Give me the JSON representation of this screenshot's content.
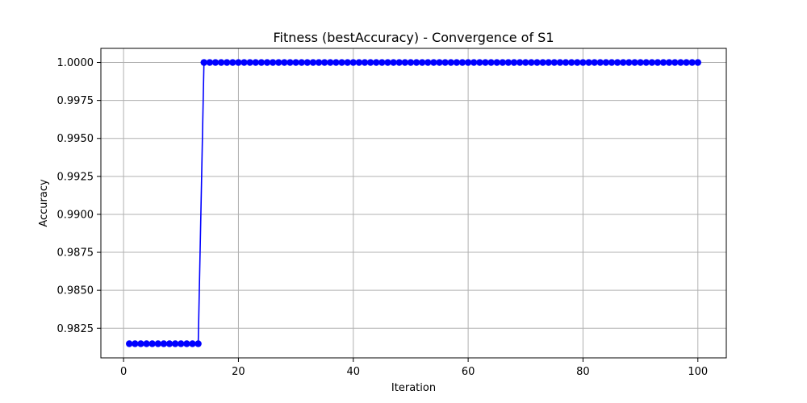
{
  "chart_data": {
    "type": "line",
    "title": "Fitness (bestAccuracy) - Convergence of S1",
    "xlabel": "Iteration",
    "ylabel": "Accuracy",
    "xlim": [
      -3.95,
      104.95
    ],
    "ylim": [
      0.98055,
      1.00093
    ],
    "x_ticks": [
      0,
      20,
      40,
      60,
      80,
      100
    ],
    "x_tick_labels": [
      "0",
      "20",
      "40",
      "60",
      "80",
      "100"
    ],
    "y_ticks": [
      0.9825,
      0.985,
      0.9875,
      0.99,
      0.9925,
      0.995,
      0.9975,
      1.0
    ],
    "y_tick_labels": [
      "0.9825",
      "0.9850",
      "0.9875",
      "0.9900",
      "0.9925",
      "0.9950",
      "0.9975",
      "1.0000"
    ],
    "grid": true,
    "marker": "circle",
    "series": [
      {
        "color": "#0000ff",
        "x": [
          1,
          2,
          3,
          4,
          5,
          6,
          7,
          8,
          9,
          10,
          11,
          12,
          13,
          14,
          15,
          16,
          17,
          18,
          19,
          20,
          21,
          22,
          23,
          24,
          25,
          26,
          27,
          28,
          29,
          30,
          31,
          32,
          33,
          34,
          35,
          36,
          37,
          38,
          39,
          40,
          41,
          42,
          43,
          44,
          45,
          46,
          47,
          48,
          49,
          50,
          51,
          52,
          53,
          54,
          55,
          56,
          57,
          58,
          59,
          60,
          61,
          62,
          63,
          64,
          65,
          66,
          67,
          68,
          69,
          70,
          71,
          72,
          73,
          74,
          75,
          76,
          77,
          78,
          79,
          80,
          81,
          82,
          83,
          84,
          85,
          86,
          87,
          88,
          89,
          90,
          91,
          92,
          93,
          94,
          95,
          96,
          97,
          98,
          99,
          100
        ],
        "values": [
          0.98148,
          0.98148,
          0.98148,
          0.98148,
          0.98148,
          0.98148,
          0.98148,
          0.98148,
          0.98148,
          0.98148,
          0.98148,
          0.98148,
          0.98148,
          1.0,
          1.0,
          1.0,
          1.0,
          1.0,
          1.0,
          1.0,
          1.0,
          1.0,
          1.0,
          1.0,
          1.0,
          1.0,
          1.0,
          1.0,
          1.0,
          1.0,
          1.0,
          1.0,
          1.0,
          1.0,
          1.0,
          1.0,
          1.0,
          1.0,
          1.0,
          1.0,
          1.0,
          1.0,
          1.0,
          1.0,
          1.0,
          1.0,
          1.0,
          1.0,
          1.0,
          1.0,
          1.0,
          1.0,
          1.0,
          1.0,
          1.0,
          1.0,
          1.0,
          1.0,
          1.0,
          1.0,
          1.0,
          1.0,
          1.0,
          1.0,
          1.0,
          1.0,
          1.0,
          1.0,
          1.0,
          1.0,
          1.0,
          1.0,
          1.0,
          1.0,
          1.0,
          1.0,
          1.0,
          1.0,
          1.0,
          1.0,
          1.0,
          1.0,
          1.0,
          1.0,
          1.0,
          1.0,
          1.0,
          1.0,
          1.0,
          1.0,
          1.0,
          1.0,
          1.0,
          1.0,
          1.0,
          1.0,
          1.0,
          1.0,
          1.0,
          1.0
        ]
      }
    ]
  }
}
